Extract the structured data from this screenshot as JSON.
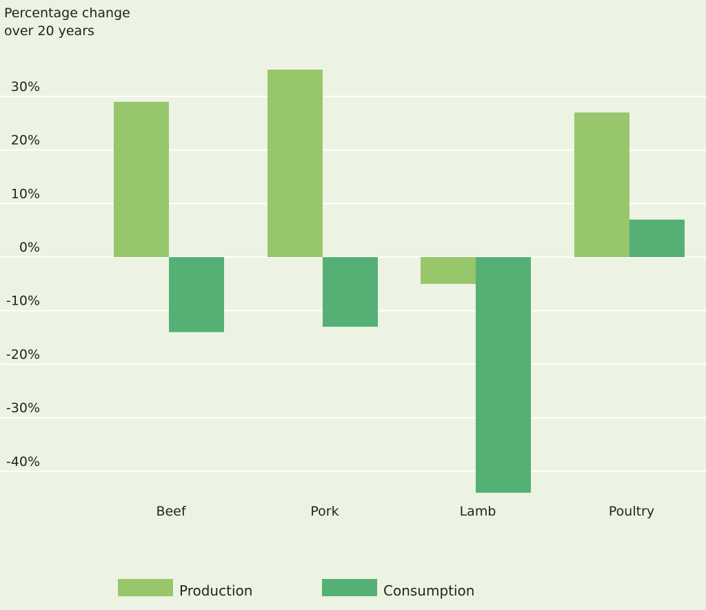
{
  "chart_data": {
    "type": "bar",
    "title": "Percentage change over 20 years",
    "title_lines": [
      "Percentage change",
      "over 20 years"
    ],
    "categories": [
      "Beef",
      "Pork",
      "Lamb",
      "Poultry"
    ],
    "series": [
      {
        "name": "Production",
        "values": [
          29,
          35,
          -5,
          27
        ],
        "color": "#97c66b"
      },
      {
        "name": "Consumption",
        "values": [
          -14,
          -13,
          -44,
          7
        ],
        "color": "#55b075"
      }
    ],
    "yticks": [
      30,
      20,
      10,
      0,
      -10,
      -20,
      -30,
      -40
    ],
    "ytick_labels": [
      "30%",
      "20%",
      "10%",
      "0%",
      "-10%",
      "-20%",
      "-30%",
      "-40%"
    ],
    "ylim": [
      -45,
      36
    ],
    "grid": true,
    "legend_position": "bottom",
    "background": "#edf3e3",
    "gridline_color": "#ffffff"
  }
}
